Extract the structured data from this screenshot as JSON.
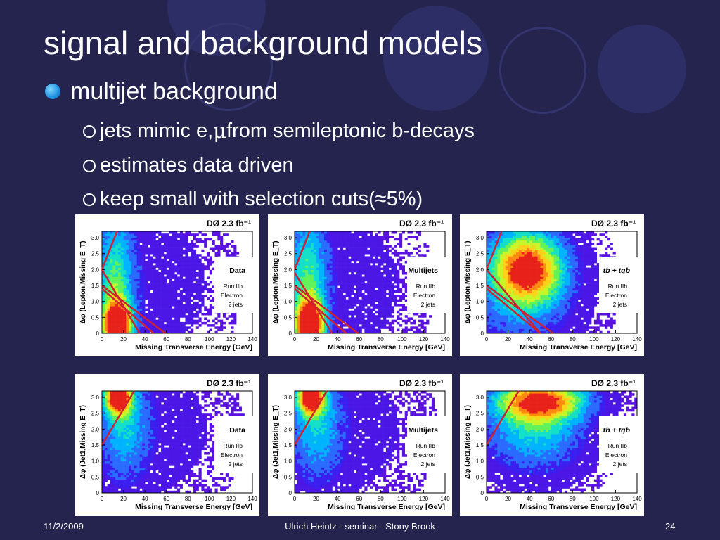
{
  "slide": {
    "title": "signal and background models",
    "bullet": "multijet background",
    "subbullets": [
      {
        "pre": "jets mimic e, ",
        "symbol": "μ",
        "post": " from semileptonic b-decays"
      },
      {
        "pre": "estimates data driven",
        "symbol": "",
        "post": ""
      },
      {
        "pre": "keep small with selection cuts(",
        "symbol": "≈",
        "post": " 5%)"
      }
    ]
  },
  "footer": {
    "date": "11/2/2009",
    "center": "Ulrich Heintz - seminar - Stony Brook",
    "page": "24"
  },
  "plots": [
    {
      "header": "DØ  2.3 fb⁻¹",
      "label": "Data",
      "run": "Run IIb",
      "channel": "Electron",
      "jets": "2 jets",
      "ylabel": "Δφ (Lepton,Missing E_T)",
      "xlabel": "Missing Transverse Energy  [GeV]"
    },
    {
      "header": "DØ  2.3 fb⁻¹",
      "label": "Multijets",
      "run": "Run IIb",
      "channel": "Electron",
      "jets": "2 jets",
      "ylabel": "Δφ (Lepton,Missing E_T)",
      "xlabel": "Missing Transverse Energy  [GeV]"
    },
    {
      "header": "DØ  2.3 fb⁻¹",
      "label": "tb + tqb",
      "run": "Run IIb",
      "channel": "Electron",
      "jets": "2 jets",
      "ylabel": "Δφ (Lepton,Missing E_T)",
      "xlabel": "Missing Transverse Energy  [GeV]"
    },
    {
      "header": "DØ  2.3 fb⁻¹",
      "label": "Data",
      "run": "Run IIb",
      "channel": "Electron",
      "jets": "2 jets",
      "ylabel": "Δφ (Jet1,Missing E_T)",
      "xlabel": "Missing Transverse Energy  [GeV]"
    },
    {
      "header": "DØ  2.3 fb⁻¹",
      "label": "Multijets",
      "run": "Run IIb",
      "channel": "Electron",
      "jets": "2 jets",
      "ylabel": "Δφ (Jet1,Missing E_T)",
      "xlabel": "Missing Transverse Energy  [GeV]"
    },
    {
      "header": "DØ  2.3 fb⁻¹",
      "label": "tb + tqb",
      "run": "Run IIb",
      "channel": "Electron",
      "jets": "2 jets",
      "ylabel": "Δφ (Jet1,Missing E_T)",
      "xlabel": "Missing Transverse Energy  [GeV]"
    }
  ],
  "axis": {
    "xticks": [
      "0",
      "20",
      "40",
      "60",
      "80",
      "100",
      "120",
      "140"
    ],
    "yticks": [
      "0",
      "0.5",
      "1.0",
      "1.5",
      "2.0",
      "2.5",
      "3.0"
    ],
    "xrange": [
      0,
      140
    ],
    "yrange": [
      0,
      3.2
    ]
  },
  "colors": {
    "background": "#24244f",
    "text": "#ffffff",
    "bullet": "#1e90e0",
    "cut_line": "#cc2233",
    "plot_base": "#4b16e6"
  }
}
